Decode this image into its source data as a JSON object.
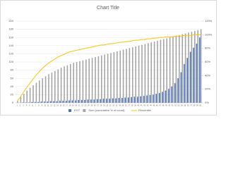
{
  "chart_data": {
    "type": "bar",
    "title": "Chart Title",
    "categories": [
      "1",
      "2",
      "3",
      "4",
      "5",
      "6",
      "7",
      "8",
      "9",
      "10",
      "11",
      "12",
      "13",
      "14",
      "15",
      "16",
      "17",
      "18",
      "19",
      "20",
      "21",
      "22",
      "23",
      "24",
      "25",
      "26",
      "27",
      "28",
      "29",
      "30",
      "31",
      "32",
      "33",
      "34",
      "35",
      "36",
      "37",
      "38",
      "39",
      "40",
      "41",
      "42",
      "43",
      "44",
      "45",
      "46",
      "47",
      "48",
      "49",
      "50",
      "51",
      "52",
      "53",
      "54",
      "55",
      "56",
      "57",
      "58",
      "59",
      "60"
    ],
    "series": [
      {
        "name": "EGT",
        "color": "#4472c4",
        "type": "bar",
        "values": [
          0,
          0,
          1,
          1,
          1,
          2,
          2,
          2,
          3,
          3,
          3,
          4,
          4,
          4,
          5,
          5,
          5,
          6,
          6,
          6,
          7,
          7,
          7,
          8,
          8,
          8,
          9,
          9,
          10,
          10,
          10,
          11,
          11,
          12,
          12,
          13,
          13,
          14,
          15,
          15,
          16,
          17,
          18,
          19,
          20,
          22,
          24,
          27,
          30,
          34,
          40,
          48,
          60,
          75,
          95,
          110,
          125,
          135,
          145,
          160
        ]
      },
      {
        "name": "Sum (cumulative % of count)",
        "color": "#a5a5a5",
        "type": "bar",
        "values": [
          4,
          14,
          22,
          30,
          37,
          43,
          49,
          55,
          60,
          65,
          70,
          74,
          78,
          82,
          86,
          89,
          92,
          95,
          98,
          100,
          102,
          104,
          106,
          108,
          110,
          112,
          114,
          116,
          118,
          120,
          122,
          124,
          126,
          128,
          130,
          132,
          134,
          136,
          138,
          140,
          142,
          144,
          146,
          148,
          150,
          152,
          154,
          156,
          158,
          160,
          162,
          164,
          166,
          168,
          170,
          172,
          174,
          176,
          178,
          180
        ]
      },
      {
        "name": "Percentile",
        "color": "#ffc000",
        "type": "line",
        "axis": "y2",
        "values": [
          2,
          8,
          15,
          22,
          28,
          34,
          40,
          45,
          50,
          54,
          58,
          61,
          64,
          67,
          69,
          71,
          73,
          75,
          76,
          77,
          78,
          79,
          80,
          81,
          82,
          83,
          84,
          85,
          85,
          86,
          87,
          87,
          88,
          89,
          89,
          90,
          90,
          91,
          92,
          92,
          93,
          93,
          94,
          94,
          95,
          95,
          96,
          96,
          97,
          97,
          97,
          98,
          98,
          98,
          99,
          99,
          99,
          100,
          100,
          100
        ]
      }
    ],
    "ylim": [
      0,
      200
    ],
    "yticks": [
      0,
      20,
      40,
      60,
      80,
      100,
      120,
      140,
      160,
      180,
      200
    ],
    "y2lim": [
      0,
      120
    ],
    "y2ticks": [
      {
        "value": 0,
        "label": "0%"
      },
      {
        "value": 20,
        "label": "20%"
      },
      {
        "value": 40,
        "label": "40%"
      },
      {
        "value": 60,
        "label": "60%"
      },
      {
        "value": 80,
        "label": "80%"
      },
      {
        "value": 100,
        "label": "100%"
      },
      {
        "value": 120,
        "label": "120%"
      }
    ],
    "grid": true,
    "legend": "bottom"
  }
}
